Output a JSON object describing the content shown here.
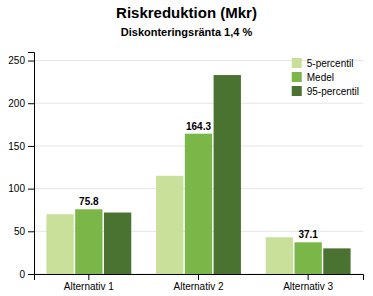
{
  "chart_data": {
    "type": "bar",
    "title": "Riskreduktion (Mkr)",
    "subtitle": "Diskonteringsränta 1,4 %",
    "categories": [
      "Alternativ 1",
      "Alternativ 2",
      "Alternativ 3"
    ],
    "series": [
      {
        "name": "5-percentil",
        "color": "#c9e09a",
        "values": [
          70,
          115,
          43
        ]
      },
      {
        "name": "Medel",
        "color": "#7ab648",
        "values": [
          75.8,
          164.3,
          37.1
        ],
        "data_labels": true
      },
      {
        "name": "95-percentil",
        "color": "#4a7230",
        "values": [
          72,
          233,
          30
        ]
      }
    ],
    "ylim": [
      0,
      260
    ],
    "yticks": [
      0,
      50,
      100,
      150,
      200,
      250
    ],
    "grid": true,
    "legend": "upper right"
  }
}
